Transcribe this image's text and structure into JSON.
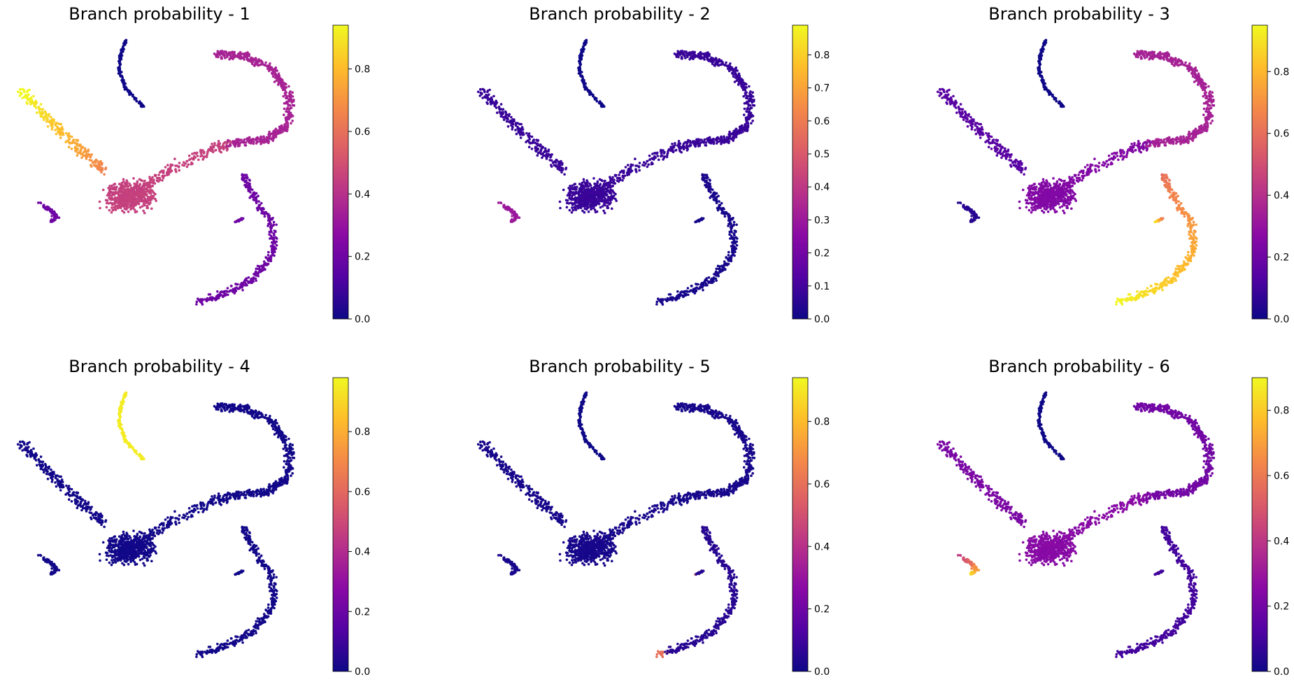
{
  "chart_data": {
    "type": "scatter",
    "layout": "2 rows x 3 columns",
    "colormap": "plasma",
    "colormap_stops": [
      "#0d0887",
      "#5302a3",
      "#8b0aa5",
      "#b83289",
      "#db5c68",
      "#f48849",
      "#febd2a",
      "#f0f921"
    ],
    "panels": [
      {
        "title": "Branch probability - 1",
        "colorbar": {
          "min": 0.0,
          "max": 0.94,
          "ticks": [
            "0.0",
            "0.2",
            "0.4",
            "0.6",
            "0.8"
          ]
        },
        "branch_values": {
          "upper_left_arm": 0.8,
          "central_body": 0.45,
          "left_hook": 0.2,
          "top_strand": 0.0,
          "upper_right_arc": 0.35,
          "lower_right_arc": 0.2
        }
      },
      {
        "title": "Branch probability - 2",
        "colorbar": {
          "min": 0.0,
          "max": 0.89,
          "ticks": [
            "0.0",
            "0.1",
            "0.2",
            "0.3",
            "0.4",
            "0.5",
            "0.6",
            "0.7",
            "0.8"
          ]
        },
        "branch_values": {
          "upper_left_arm": 0.08,
          "central_body": 0.08,
          "left_hook": 0.3,
          "top_strand": 0.0,
          "upper_right_arc": 0.08,
          "lower_right_arc": 0.02
        }
      },
      {
        "title": "Branch probability - 3",
        "colorbar": {
          "min": 0.0,
          "max": 0.95,
          "ticks": [
            "0.0",
            "0.2",
            "0.4",
            "0.6",
            "0.8"
          ]
        },
        "branch_values": {
          "upper_left_arm": 0.15,
          "central_body": 0.25,
          "left_hook": 0.05,
          "top_strand": 0.0,
          "upper_right_arc": 0.35,
          "lower_right_arc": 0.75
        }
      },
      {
        "title": "Branch probability - 4",
        "colorbar": {
          "min": 0.0,
          "max": 0.98,
          "ticks": [
            "0.0",
            "0.2",
            "0.4",
            "0.6",
            "0.8"
          ]
        },
        "branch_values": {
          "upper_left_arm": 0.01,
          "central_body": 0.01,
          "left_hook": 0.01,
          "top_strand": 0.95,
          "upper_right_arc": 0.01,
          "lower_right_arc": 0.01
        }
      },
      {
        "title": "Branch probability - 5",
        "colorbar": {
          "min": 0.0,
          "max": 0.94,
          "ticks": [
            "0.0",
            "0.2",
            "0.4",
            "0.6",
            "0.8"
          ]
        },
        "branch_values": {
          "upper_left_arm": 0.02,
          "central_body": 0.02,
          "left_hook": 0.02,
          "top_strand": 0.0,
          "upper_right_arc": 0.02,
          "lower_right_arc": 0.05
        }
      },
      {
        "title": "Branch probability - 6",
        "colorbar": {
          "min": 0.0,
          "max": 0.9,
          "ticks": [
            "0.0",
            "0.2",
            "0.4",
            "0.6",
            "0.8"
          ]
        },
        "branch_values": {
          "upper_left_arm": 0.22,
          "central_body": 0.25,
          "left_hook": 0.6,
          "top_strand": 0.0,
          "upper_right_arc": 0.2,
          "lower_right_arc": 0.1
        }
      }
    ]
  }
}
